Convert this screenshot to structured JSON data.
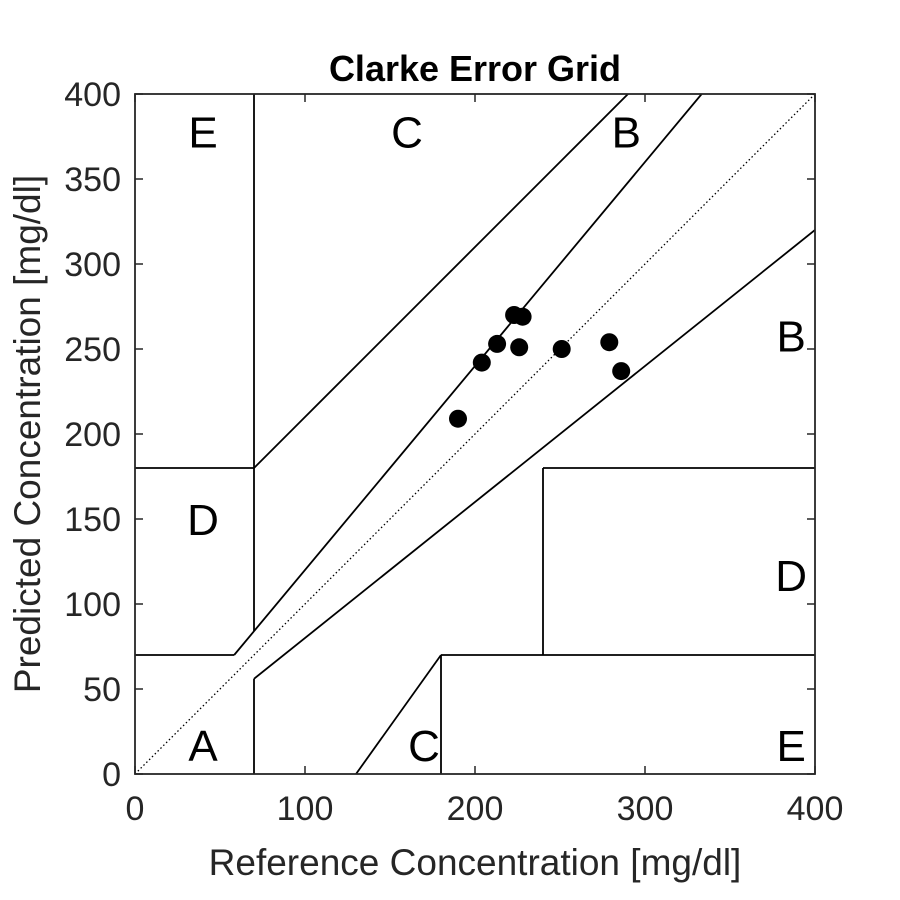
{
  "chart_data": {
    "type": "scatter",
    "title": "Clarke Error Grid",
    "xlabel": "Reference Concentration [mg/dl]",
    "ylabel": "Predicted Concentration [mg/dl]",
    "xlim": [
      0,
      400
    ],
    "ylim": [
      0,
      400
    ],
    "xticks": [
      "0",
      "100",
      "200",
      "300",
      "400"
    ],
    "yticks": [
      "0",
      "50",
      "100",
      "150",
      "200",
      "250",
      "300",
      "350",
      "400"
    ],
    "grid": false,
    "points": [
      {
        "x": 190,
        "y": 209
      },
      {
        "x": 204,
        "y": 242
      },
      {
        "x": 213,
        "y": 253
      },
      {
        "x": 223,
        "y": 270
      },
      {
        "x": 228,
        "y": 269
      },
      {
        "x": 226,
        "y": 251
      },
      {
        "x": 251,
        "y": 250
      },
      {
        "x": 279,
        "y": 254
      },
      {
        "x": 286,
        "y": 237
      }
    ],
    "zone_labels": [
      {
        "text": "E",
        "x": 40,
        "y": 378
      },
      {
        "text": "C",
        "x": 160,
        "y": 378
      },
      {
        "text": "B",
        "x": 289,
        "y": 378
      },
      {
        "text": "D",
        "x": 40,
        "y": 150
      },
      {
        "text": "B",
        "x": 386,
        "y": 258
      },
      {
        "text": "D",
        "x": 386,
        "y": 117
      },
      {
        "text": "A",
        "x": 40,
        "y": 17
      },
      {
        "text": "C",
        "x": 170,
        "y": 17
      },
      {
        "text": "E",
        "x": 386,
        "y": 17
      }
    ],
    "boundaries": [
      [
        [
          70,
          0
        ],
        [
          70,
          56
        ]
      ],
      [
        [
          70,
          56
        ],
        [
          400,
          320
        ]
      ],
      [
        [
          0,
          70
        ],
        [
          58.33,
          70
        ]
      ],
      [
        [
          58.33,
          70
        ],
        [
          70,
          84
        ]
      ],
      [
        [
          70,
          84
        ],
        [
          333.33,
          400
        ]
      ],
      [
        [
          70,
          84
        ],
        [
          70,
          400
        ]
      ],
      [
        [
          0,
          180
        ],
        [
          70,
          180
        ]
      ],
      [
        [
          70,
          180
        ],
        [
          290,
          400
        ]
      ],
      [
        [
          130,
          0
        ],
        [
          180,
          70
        ]
      ],
      [
        [
          180,
          0
        ],
        [
          180,
          70
        ]
      ],
      [
        [
          180,
          70
        ],
        [
          400,
          70
        ]
      ],
      [
        [
          240,
          70
        ],
        [
          240,
          180
        ]
      ],
      [
        [
          240,
          180
        ],
        [
          400,
          180
        ]
      ]
    ],
    "identity_line": [
      [
        0,
        0
      ],
      [
        400,
        400
      ]
    ]
  }
}
